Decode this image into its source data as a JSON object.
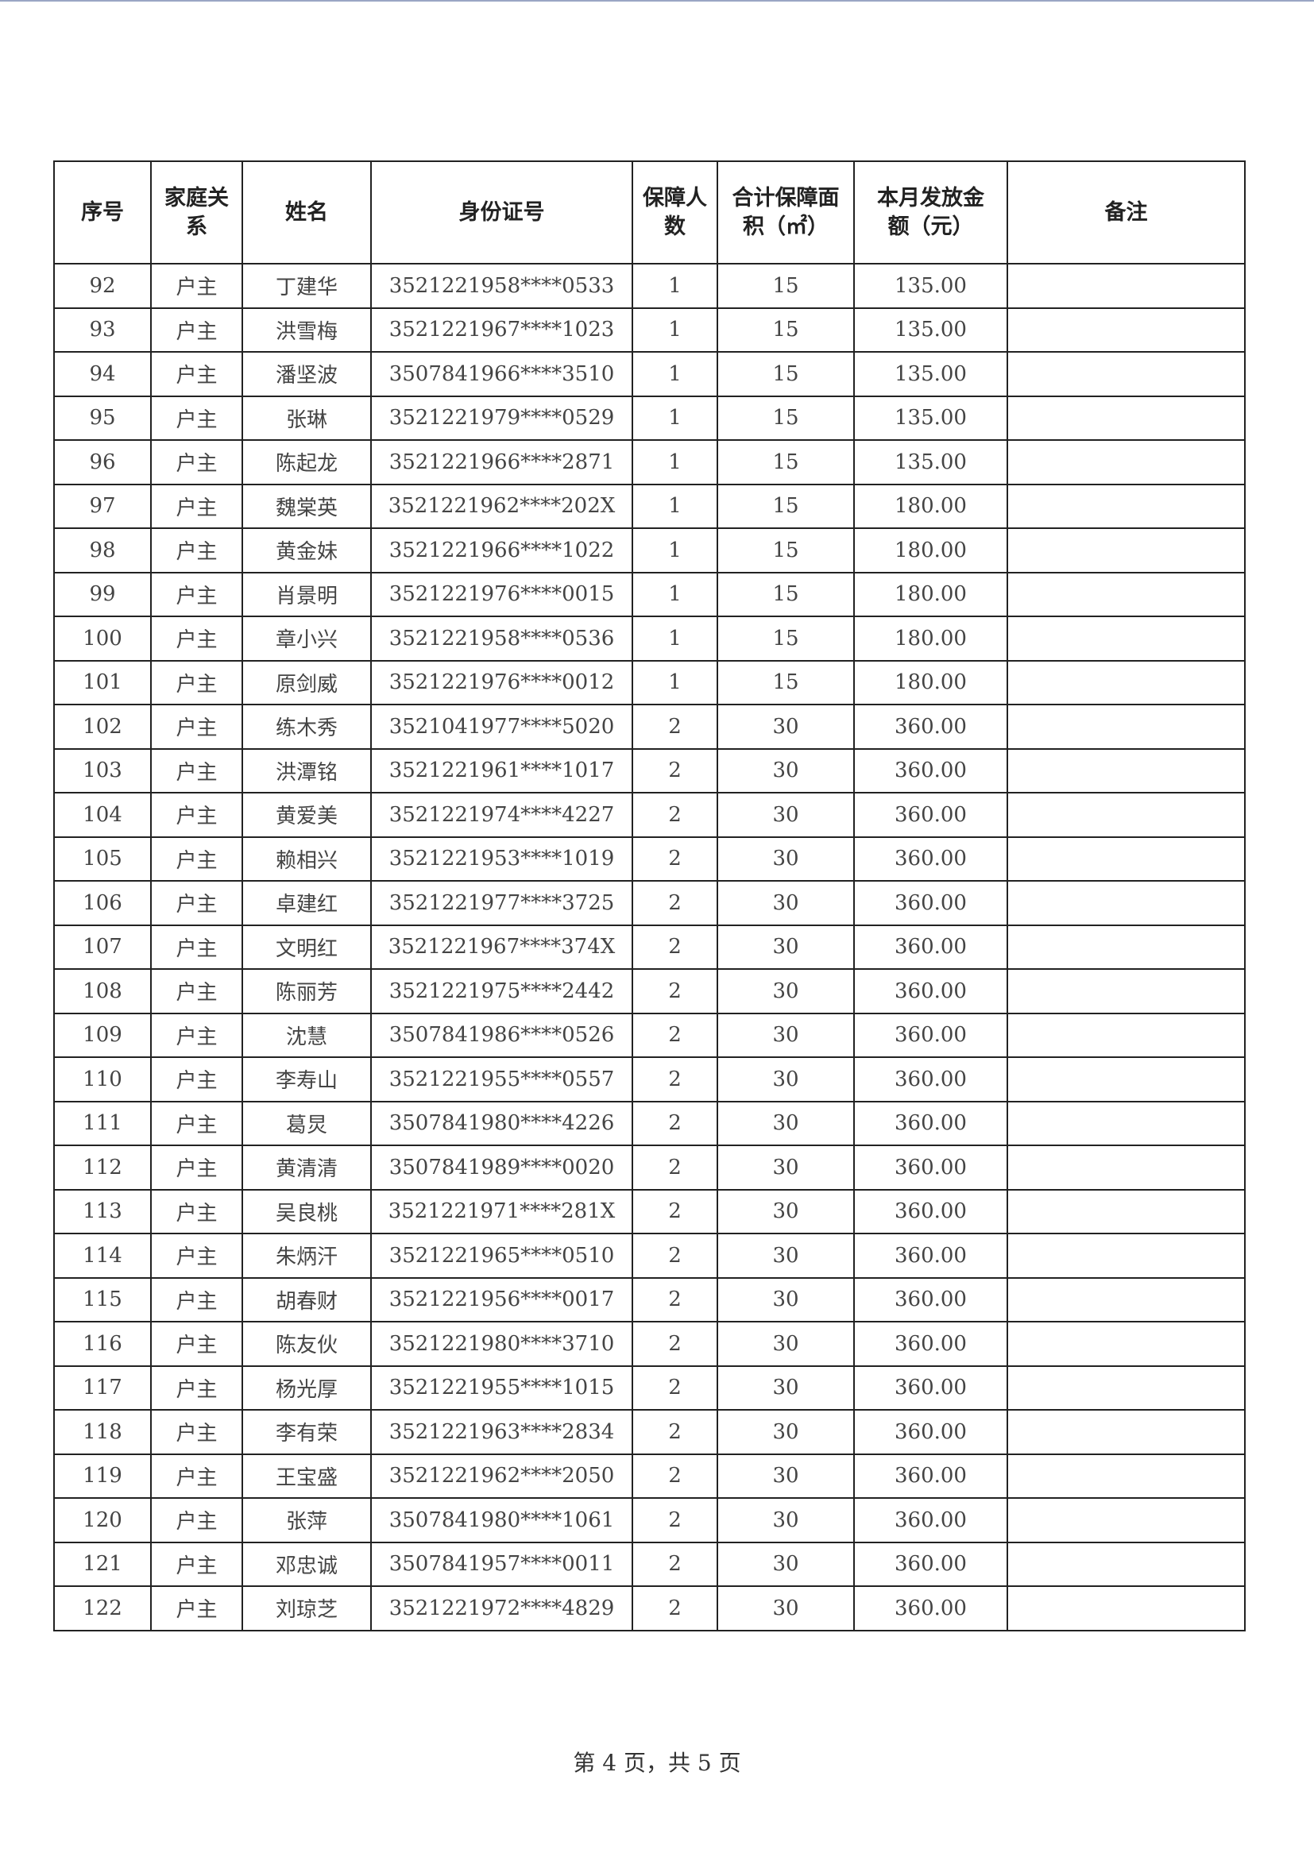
{
  "headers": [
    "序号",
    "家庭关系",
    "姓名",
    "身份证号",
    "保障人数",
    "合计保障面积（㎡）",
    "本月发放金额（元）",
    "备注"
  ],
  "rows": [
    [
      "92",
      "户主",
      "丁建华",
      "3521221958****0533",
      "1",
      "15",
      "135.00",
      ""
    ],
    [
      "93",
      "户主",
      "洪雪梅",
      "3521221967****1023",
      "1",
      "15",
      "135.00",
      ""
    ],
    [
      "94",
      "户主",
      "潘坚波",
      "3507841966****3510",
      "1",
      "15",
      "135.00",
      ""
    ],
    [
      "95",
      "户主",
      "张琳",
      "3521221979****0529",
      "1",
      "15",
      "135.00",
      ""
    ],
    [
      "96",
      "户主",
      "陈起龙",
      "3521221966****2871",
      "1",
      "15",
      "135.00",
      ""
    ],
    [
      "97",
      "户主",
      "魏棠英",
      "3521221962****202X",
      "1",
      "15",
      "180.00",
      ""
    ],
    [
      "98",
      "户主",
      "黄金妹",
      "3521221966****1022",
      "1",
      "15",
      "180.00",
      ""
    ],
    [
      "99",
      "户主",
      "肖景明",
      "3521221976****0015",
      "1",
      "15",
      "180.00",
      ""
    ],
    [
      "100",
      "户主",
      "章小兴",
      "3521221958****0536",
      "1",
      "15",
      "180.00",
      ""
    ],
    [
      "101",
      "户主",
      "原剑威",
      "3521221976****0012",
      "1",
      "15",
      "180.00",
      ""
    ],
    [
      "102",
      "户主",
      "练木秀",
      "3521041977****5020",
      "2",
      "30",
      "360.00",
      ""
    ],
    [
      "103",
      "户主",
      "洪潭铭",
      "3521221961****1017",
      "2",
      "30",
      "360.00",
      ""
    ],
    [
      "104",
      "户主",
      "黄爱美",
      "3521221974****4227",
      "2",
      "30",
      "360.00",
      ""
    ],
    [
      "105",
      "户主",
      "赖相兴",
      "3521221953****1019",
      "2",
      "30",
      "360.00",
      ""
    ],
    [
      "106",
      "户主",
      "卓建红",
      "3521221977****3725",
      "2",
      "30",
      "360.00",
      ""
    ],
    [
      "107",
      "户主",
      "文明红",
      "3521221967****374X",
      "2",
      "30",
      "360.00",
      ""
    ],
    [
      "108",
      "户主",
      "陈丽芳",
      "3521221975****2442",
      "2",
      "30",
      "360.00",
      ""
    ],
    [
      "109",
      "户主",
      "沈慧",
      "3507841986****0526",
      "2",
      "30",
      "360.00",
      ""
    ],
    [
      "110",
      "户主",
      "李寿山",
      "3521221955****0557",
      "2",
      "30",
      "360.00",
      ""
    ],
    [
      "111",
      "户主",
      "葛炅",
      "3507841980****4226",
      "2",
      "30",
      "360.00",
      ""
    ],
    [
      "112",
      "户主",
      "黄清清",
      "3507841989****0020",
      "2",
      "30",
      "360.00",
      ""
    ],
    [
      "113",
      "户主",
      "吴良桃",
      "3521221971****281X",
      "2",
      "30",
      "360.00",
      ""
    ],
    [
      "114",
      "户主",
      "朱炳汗",
      "3521221965****0510",
      "2",
      "30",
      "360.00",
      ""
    ],
    [
      "115",
      "户主",
      "胡春财",
      "3521221956****0017",
      "2",
      "30",
      "360.00",
      ""
    ],
    [
      "116",
      "户主",
      "陈友伙",
      "3521221980****3710",
      "2",
      "30",
      "360.00",
      ""
    ],
    [
      "117",
      "户主",
      "杨光厚",
      "3521221955****1015",
      "2",
      "30",
      "360.00",
      ""
    ],
    [
      "118",
      "户主",
      "李有荣",
      "3521221963****2834",
      "2",
      "30",
      "360.00",
      ""
    ],
    [
      "119",
      "户主",
      "王宝盛",
      "3521221962****2050",
      "2",
      "30",
      "360.00",
      ""
    ],
    [
      "120",
      "户主",
      "张萍",
      "3507841980****1061",
      "2",
      "30",
      "360.00",
      ""
    ],
    [
      "121",
      "户主",
      "邓忠诚",
      "3507841957****0011",
      "2",
      "30",
      "360.00",
      ""
    ],
    [
      "122",
      "户主",
      "刘琼芝",
      "3521221972****4829",
      "2",
      "30",
      "360.00",
      ""
    ]
  ],
  "footer": "第 4 页，共 5 页"
}
